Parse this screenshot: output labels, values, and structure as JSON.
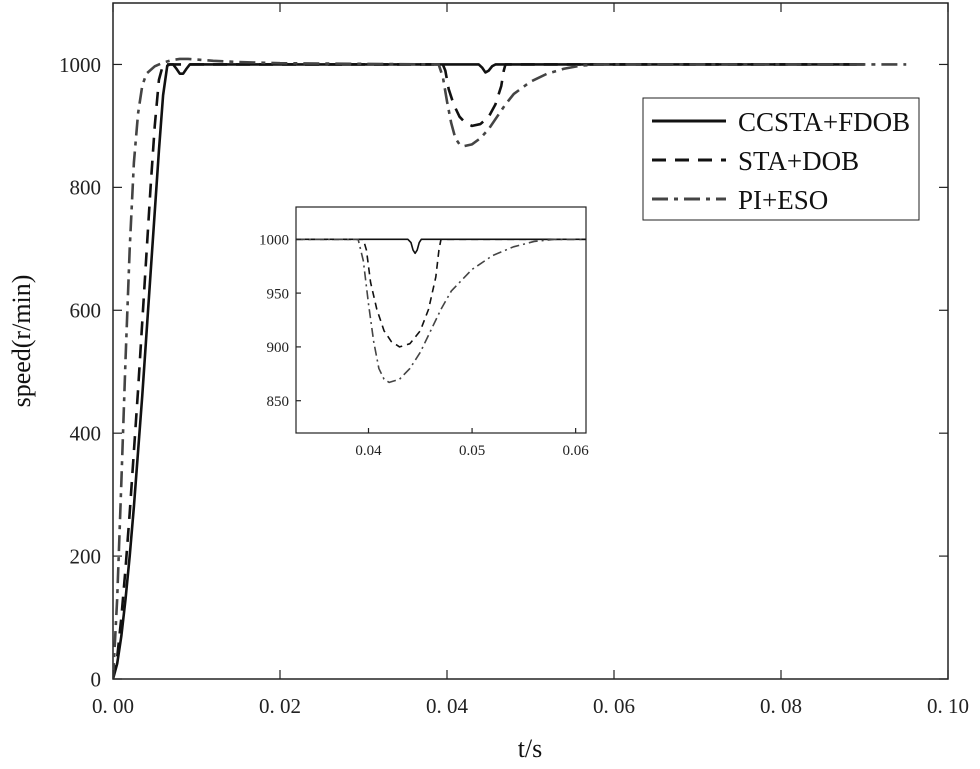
{
  "chart_data": [
    {
      "type": "line",
      "xlabel": "t/s",
      "ylabel": "speed(r/min)",
      "xlim": [
        0,
        0.1
      ],
      "ylim": [
        0,
        1100
      ],
      "xticks": [
        0,
        0.02,
        0.04,
        0.06,
        0.08,
        0.1
      ],
      "xtick_labels": [
        "0. 00",
        "0. 02",
        "0. 04",
        "0. 06",
        "0. 08",
        "0. 10"
      ],
      "yticks": [
        0,
        200,
        400,
        600,
        800,
        1000
      ],
      "ytick_labels": [
        "0",
        "200",
        "400",
        "600",
        "800",
        "1000"
      ],
      "grid": false,
      "legend_position": "top-right",
      "series": [
        {
          "name": "CCSTA+FDOB",
          "style": "solid",
          "color": "#111111",
          "points": [
            [
              0,
              0
            ],
            [
              0.0005,
              25
            ],
            [
              0.001,
              70
            ],
            [
              0.0015,
              130
            ],
            [
              0.002,
              200
            ],
            [
              0.0025,
              280
            ],
            [
              0.003,
              370
            ],
            [
              0.0035,
              460
            ],
            [
              0.004,
              560
            ],
            [
              0.0045,
              660
            ],
            [
              0.005,
              760
            ],
            [
              0.0055,
              860
            ],
            [
              0.006,
              950
            ],
            [
              0.0065,
              998
            ],
            [
              0.0068,
              1000
            ],
            [
              0.0072,
              1000
            ],
            [
              0.0076,
              993
            ],
            [
              0.008,
              985
            ],
            [
              0.0084,
              985
            ],
            [
              0.0088,
              993
            ],
            [
              0.0092,
              1000
            ],
            [
              0.02,
              1000
            ],
            [
              0.04,
              1000
            ],
            [
              0.0438,
              1000
            ],
            [
              0.0442,
              995
            ],
            [
              0.0446,
              987
            ],
            [
              0.045,
              990
            ],
            [
              0.0454,
              997
            ],
            [
              0.0458,
              1000
            ],
            [
              0.06,
              1000
            ],
            [
              0.08,
              1000
            ],
            [
              0.09,
              1000
            ]
          ]
        },
        {
          "name": "STA+DOB",
          "style": "dashed",
          "color": "#111111",
          "points": [
            [
              0,
              0
            ],
            [
              0.0005,
              35
            ],
            [
              0.001,
              100
            ],
            [
              0.0015,
              180
            ],
            [
              0.002,
              270
            ],
            [
              0.0025,
              370
            ],
            [
              0.003,
              470
            ],
            [
              0.0035,
              580
            ],
            [
              0.004,
              690
            ],
            [
              0.0045,
              800
            ],
            [
              0.005,
              900
            ],
            [
              0.0055,
              975
            ],
            [
              0.006,
              1000
            ],
            [
              0.02,
              1000
            ],
            [
              0.0395,
              1000
            ],
            [
              0.0398,
              990
            ],
            [
              0.0402,
              960
            ],
            [
              0.0408,
              935
            ],
            [
              0.0415,
              915
            ],
            [
              0.0422,
              905
            ],
            [
              0.043,
              900
            ],
            [
              0.044,
              903
            ],
            [
              0.045,
              915
            ],
            [
              0.0458,
              935
            ],
            [
              0.0465,
              965
            ],
            [
              0.0468,
              990
            ],
            [
              0.047,
              1000
            ],
            [
              0.06,
              1000
            ],
            [
              0.08,
              1000
            ],
            [
              0.09,
              1000
            ]
          ]
        },
        {
          "name": "PI+ESO",
          "style": "dashdot",
          "color": "#444444",
          "points": [
            [
              0,
              0
            ],
            [
              0.0005,
              130
            ],
            [
              0.001,
              320
            ],
            [
              0.0015,
              520
            ],
            [
              0.002,
              700
            ],
            [
              0.0025,
              840
            ],
            [
              0.003,
              920
            ],
            [
              0.0035,
              965
            ],
            [
              0.004,
              985
            ],
            [
              0.005,
              997
            ],
            [
              0.006,
              1003
            ],
            [
              0.007,
              1007
            ],
            [
              0.008,
              1009
            ],
            [
              0.009,
              1009
            ],
            [
              0.01,
              1008
            ],
            [
              0.012,
              1006
            ],
            [
              0.015,
              1004
            ],
            [
              0.02,
              1002
            ],
            [
              0.03,
              1001
            ],
            [
              0.039,
              1000
            ],
            [
              0.0395,
              980
            ],
            [
              0.04,
              940
            ],
            [
              0.0405,
              905
            ],
            [
              0.041,
              880
            ],
            [
              0.0415,
              870
            ],
            [
              0.042,
              867
            ],
            [
              0.043,
              870
            ],
            [
              0.044,
              880
            ],
            [
              0.045,
              895
            ],
            [
              0.046,
              915
            ],
            [
              0.047,
              935
            ],
            [
              0.048,
              952
            ],
            [
              0.05,
              972
            ],
            [
              0.052,
              985
            ],
            [
              0.054,
              993
            ],
            [
              0.056,
              998
            ],
            [
              0.058,
              1000
            ],
            [
              0.07,
              1000
            ],
            [
              0.08,
              1000
            ],
            [
              0.095,
              1000
            ]
          ]
        }
      ]
    },
    {
      "type": "line",
      "role": "inset",
      "xlim": [
        0.033,
        0.061
      ],
      "ylim": [
        820,
        1030
      ],
      "xticks": [
        0.04,
        0.05,
        0.06
      ],
      "xtick_labels": [
        "0.04",
        "0.05",
        "0.06"
      ],
      "yticks": [
        850,
        900,
        950,
        1000
      ],
      "ytick_labels": [
        "850",
        "900",
        "950",
        "1000"
      ],
      "grid": false,
      "series": [
        {
          "style": "solid",
          "color": "#111111",
          "points": [
            [
              0.033,
              1000
            ],
            [
              0.0438,
              1000
            ],
            [
              0.0441,
              997
            ],
            [
              0.0443,
              990
            ],
            [
              0.0445,
              987
            ],
            [
              0.0447,
              990
            ],
            [
              0.0449,
              997
            ],
            [
              0.0451,
              1000
            ],
            [
              0.061,
              1000
            ]
          ]
        },
        {
          "style": "dashed",
          "color": "#111111",
          "points": [
            [
              0.033,
              1000
            ],
            [
              0.0395,
              1000
            ],
            [
              0.0398,
              990
            ],
            [
              0.0402,
              960
            ],
            [
              0.0408,
              935
            ],
            [
              0.0415,
              915
            ],
            [
              0.0422,
              905
            ],
            [
              0.043,
              900
            ],
            [
              0.044,
              903
            ],
            [
              0.045,
              915
            ],
            [
              0.0458,
              935
            ],
            [
              0.0465,
              965
            ],
            [
              0.0468,
              990
            ],
            [
              0.047,
              1000
            ],
            [
              0.061,
              1000
            ]
          ]
        },
        {
          "style": "dashdot",
          "color": "#444444",
          "points": [
            [
              0.033,
              1000
            ],
            [
              0.039,
              1000
            ],
            [
              0.0395,
              980
            ],
            [
              0.04,
              940
            ],
            [
              0.0405,
              905
            ],
            [
              0.041,
              880
            ],
            [
              0.0415,
              870
            ],
            [
              0.042,
              867
            ],
            [
              0.043,
              870
            ],
            [
              0.044,
              880
            ],
            [
              0.045,
              895
            ],
            [
              0.046,
              915
            ],
            [
              0.047,
              935
            ],
            [
              0.048,
              952
            ],
            [
              0.05,
              972
            ],
            [
              0.052,
              985
            ],
            [
              0.054,
              993
            ],
            [
              0.056,
              998
            ],
            [
              0.058,
              1000
            ],
            [
              0.061,
              1000
            ]
          ]
        }
      ]
    }
  ]
}
